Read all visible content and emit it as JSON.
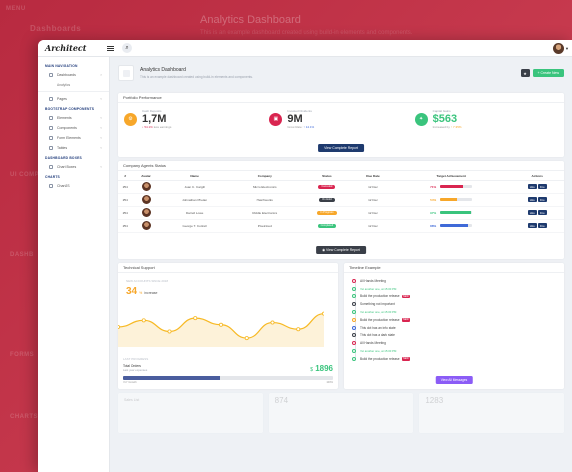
{
  "background": {
    "menu_label": "MENU",
    "dashboards_label": "Dashboards",
    "title": "Analytics Dashboard",
    "subtitle": "This is an example dashboard created using build-in elements and components.",
    "left_labels": [
      "UI COMP",
      "DASHB",
      "FORMS",
      "CHARTS"
    ]
  },
  "topbar": {
    "logo": "Architect",
    "search_icon": "search-icon",
    "menu_icon": "hamburger-icon"
  },
  "sidebar": {
    "sections": [
      {
        "title": "MAIN NAVIGATION",
        "items": [
          {
            "label": "Dashboards",
            "icon": "rocket-icon"
          }
        ],
        "subitems": [
          "Analytics"
        ],
        "extra": [
          {
            "label": "Pages",
            "icon": "browser-icon"
          }
        ]
      },
      {
        "title": "BOOTSTRAP COMPONENTS",
        "items": [
          {
            "label": "Elements",
            "icon": "diamond-icon"
          },
          {
            "label": "Components",
            "icon": "car-icon"
          },
          {
            "label": "Form Elements",
            "icon": "light-icon"
          },
          {
            "label": "Tables",
            "icon": "display-icon"
          }
        ]
      },
      {
        "title": "DASHBOARD BOXES",
        "items": [
          {
            "label": "Chart Boxes",
            "icon": "graph-icon"
          }
        ]
      },
      {
        "title": "CHARTS",
        "items": [
          {
            "label": "ChartJS",
            "icon": "graph-icon"
          }
        ]
      }
    ]
  },
  "page": {
    "title": "Analytics Dashboard",
    "subtitle": "This is an example dashboard created using build-in elements and components.",
    "star_icon": "★",
    "create_label": "+ Create New"
  },
  "performance": {
    "title": "Portfolio Performance",
    "columns": [
      {
        "label": "Cash Deposits",
        "value": "1,7M",
        "delta": "54.1%",
        "note": "less earnings",
        "color": "#f7a72a",
        "delta_color": "#d92550",
        "icon": "settings-icon"
      },
      {
        "label": "Invested Dividents",
        "value": "9M",
        "prefix": "Grow Rate:",
        "delta": "14.1%",
        "color": "#d92550",
        "delta_color": "#3f6ad8",
        "icon": "wallet-icon"
      },
      {
        "label": "Capital Gains",
        "value": "$563",
        "prefix": "Increased by",
        "delta": "7.35%",
        "color": "#3ac47d",
        "delta_color": "#f7a72a",
        "value_color": "#3ac47d",
        "icon": "lightbulb-icon"
      }
    ],
    "button": "View Complete Report"
  },
  "agents": {
    "title": "Company Agents Status",
    "headers": [
      "#",
      "Avatar",
      "Name",
      "Company",
      "Status",
      "Due Date",
      "Target Achievement",
      "Actions"
    ],
    "rows": [
      {
        "id": "#54",
        "name": "Juan C. Cargill",
        "company": "Micro Electronics",
        "status": "Canceled",
        "status_color": "#d92550",
        "due": "12 Dec",
        "target": 71,
        "bar_color": "#d92550"
      },
      {
        "id": "#54",
        "name": "Johnathan Phelan",
        "company": "Hatchworks",
        "status": "On Hold",
        "status_color": "#3a3f48",
        "due": "12 Dec",
        "target": 54,
        "bar_color": "#f7a72a"
      },
      {
        "id": "#54",
        "name": "Darrell Lowe",
        "company": "Riddle Electronics",
        "status": "In Progress",
        "status_color": "#f7a72a",
        "due": "12 Dec",
        "target": 97,
        "bar_color": "#3ac47d"
      },
      {
        "id": "#54",
        "name": "George T. Cottrell",
        "company": "Pixelcloud",
        "status": "Completed",
        "status_color": "#3ac47d",
        "due": "12 Dec",
        "target": 88,
        "bar_color": "#3f6ad8"
      }
    ],
    "action_hire": "Hire",
    "action_fire": "Fire",
    "button": "View Complete Report"
  },
  "tech": {
    "title": "Technical Support",
    "new_accounts": "NEW ACCOUNTS SINCE 2018",
    "value": "34",
    "pct": "%",
    "increase": "increase",
    "last_month": "LAST PROGRESS",
    "orders_title": "Total Orders",
    "orders_sub": "Last year expenses",
    "amount_prefix": "$",
    "amount": "1896",
    "progress": 0.46,
    "progress_left": "YoY Growth",
    "progress_right": "100%",
    "series": [
      18,
      24,
      14,
      26,
      20,
      8,
      22,
      16,
      30
    ]
  },
  "timeline": {
    "title": "Timeline Example",
    "items": [
      {
        "text": "All Hands Meeting",
        "color": "#d92550"
      },
      {
        "text": "Yet another one, at 15:00 PM",
        "sub": true,
        "color": "#3ac47d"
      },
      {
        "text": "Build the production release",
        "tag": "NEW",
        "color": "#3ac47d"
      },
      {
        "text": "Something not important",
        "color": "#3a3f48"
      },
      {
        "text": "Yet another one, at 15:00 PM",
        "sub": true,
        "color": "#3ac47d"
      },
      {
        "text": "Build the production release",
        "tag": "NEW",
        "color": "#f7a72a"
      },
      {
        "text": "This dot has an info state",
        "color": "#3f6ad8"
      },
      {
        "text": "This dot has a dark state",
        "color": "#3a3f48"
      },
      {
        "text": "All Hands Meeting",
        "color": "#d92550"
      },
      {
        "text": "Yet another one, at 15:00 PM",
        "sub": true,
        "color": "#3ac47d"
      },
      {
        "text": "Build the production release",
        "tag": "NEW",
        "color": "#3ac47d"
      }
    ],
    "button": "View All Messages"
  },
  "bottom": {
    "c1_title": "Sales List",
    "c2_value": "874",
    "c3_value": "1283"
  }
}
